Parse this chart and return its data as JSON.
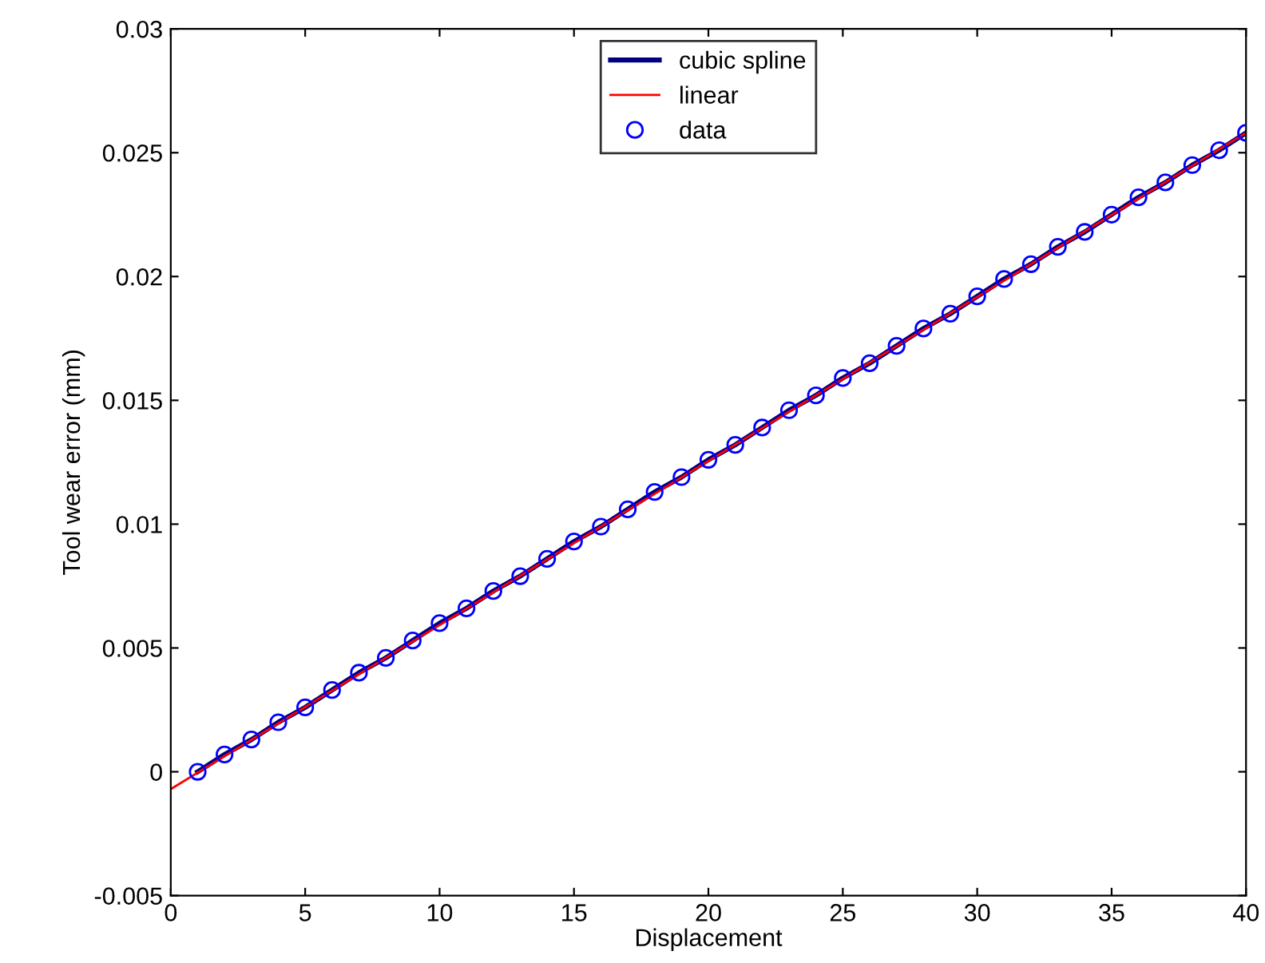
{
  "chart_data": {
    "type": "line",
    "xlabel": "Displacement",
    "ylabel": "Tool wear error (mm)",
    "xlim": [
      0,
      40
    ],
    "ylim": [
      -0.005,
      0.03
    ],
    "xticks": [
      0,
      5,
      10,
      15,
      20,
      25,
      30,
      35,
      40
    ],
    "yticks": [
      -0.005,
      0,
      0.005,
      0.01,
      0.015,
      0.02,
      0.025,
      0.03
    ],
    "grid": false,
    "legend": "top",
    "x": [
      1,
      2,
      3,
      4,
      5,
      6,
      7,
      8,
      9,
      10,
      11,
      12,
      13,
      14,
      15,
      16,
      17,
      18,
      19,
      20,
      21,
      22,
      23,
      24,
      25,
      26,
      27,
      28,
      29,
      30,
      31,
      32,
      33,
      34,
      35,
      36,
      37,
      38,
      39,
      40
    ],
    "series": [
      {
        "name": "cubic spline",
        "color": "#000080",
        "marker": "none",
        "line_style": "solid",
        "values": [
          0,
          0.0007,
          0.0013,
          0.002,
          0.0026,
          0.0033,
          0.004,
          0.0046,
          0.0053,
          0.006,
          0.0066,
          0.0073,
          0.0079,
          0.0086,
          0.0093,
          0.0099,
          0.0106,
          0.0113,
          0.0119,
          0.0126,
          0.0132,
          0.0139,
          0.0146,
          0.0152,
          0.0159,
          0.0165,
          0.0172,
          0.0179,
          0.0185,
          0.0192,
          0.0199,
          0.0205,
          0.0212,
          0.0218,
          0.0225,
          0.0232,
          0.0238,
          0.0245,
          0.0251,
          0.0258
        ]
      },
      {
        "name": "linear",
        "color": "#ff0000",
        "marker": "none",
        "line_style": "solid",
        "x": [
          0,
          40
        ],
        "values": [
          -0.0007,
          0.0258
        ]
      },
      {
        "name": "data",
        "type": "scatter",
        "color": "#0000ff",
        "marker": "circle",
        "values": [
          0,
          0.0007,
          0.0013,
          0.002,
          0.0026,
          0.0033,
          0.004,
          0.0046,
          0.0053,
          0.006,
          0.0066,
          0.0073,
          0.0079,
          0.0086,
          0.0093,
          0.0099,
          0.0106,
          0.0113,
          0.0119,
          0.0126,
          0.0132,
          0.0139,
          0.0146,
          0.0152,
          0.0159,
          0.0165,
          0.0172,
          0.0179,
          0.0185,
          0.0192,
          0.0199,
          0.0205,
          0.0212,
          0.0218,
          0.0225,
          0.0232,
          0.0238,
          0.0245,
          0.0251,
          0.0258
        ]
      }
    ]
  }
}
